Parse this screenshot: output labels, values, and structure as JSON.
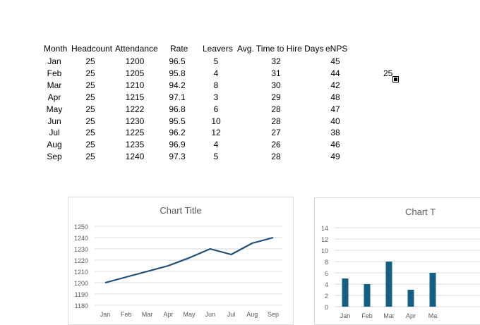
{
  "table": {
    "headers": [
      "Month",
      "Headcount",
      "Attendance",
      "Rate",
      "Leavers",
      "Avg. Time to Hire Days",
      "eNPS"
    ],
    "rows": [
      [
        "Jan",
        "25",
        "1200",
        "96.5",
        "5",
        "32",
        "45"
      ],
      [
        "Feb",
        "25",
        "1205",
        "95.8",
        "4",
        "31",
        "44"
      ],
      [
        "Mar",
        "25",
        "1210",
        "94.2",
        "8",
        "30",
        "42"
      ],
      [
        "Apr",
        "25",
        "1215",
        "97.1",
        "3",
        "29",
        "48"
      ],
      [
        "May",
        "25",
        "1222",
        "96.8",
        "6",
        "28",
        "47"
      ],
      [
        "Jun",
        "25",
        "1230",
        "95.5",
        "10",
        "28",
        "40"
      ],
      [
        "Jul",
        "25",
        "1225",
        "96.2",
        "12",
        "27",
        "38"
      ],
      [
        "Aug",
        "25",
        "1235",
        "96.9",
        "4",
        "26",
        "46"
      ],
      [
        "Sep",
        "25",
        "1240",
        "97.3",
        "5",
        "28",
        "49"
      ]
    ]
  },
  "floating_value": "25",
  "colors": {
    "series": "#1f4e79",
    "bar": "#156082",
    "grid": "#d9d9d9",
    "axis_text": "#595959"
  },
  "chart_data": [
    {
      "type": "line",
      "title": "Chart Title",
      "categories": [
        "Jan",
        "Feb",
        "Mar",
        "Apr",
        "May",
        "Jun",
        "Jul",
        "Aug",
        "Sep"
      ],
      "series": [
        {
          "values": [
            1200,
            1205,
            1210,
            1215,
            1222,
            1230,
            1225,
            1235,
            1240
          ]
        }
      ],
      "yticks": [
        1180,
        1190,
        1200,
        1210,
        1220,
        1230,
        1240,
        1250
      ],
      "ylim": [
        1180,
        1250
      ],
      "grid": true,
      "legend": "none"
    },
    {
      "type": "bar",
      "title": "Chart T",
      "categories": [
        "Jan",
        "Feb",
        "Mar",
        "Apr",
        "Ma"
      ],
      "series": [
        {
          "values": [
            5,
            4,
            8,
            3,
            6
          ]
        }
      ],
      "yticks": [
        0,
        2,
        4,
        6,
        8,
        10,
        12,
        14
      ],
      "ylim": [
        0,
        14
      ],
      "grid": true,
      "legend": "none"
    }
  ]
}
